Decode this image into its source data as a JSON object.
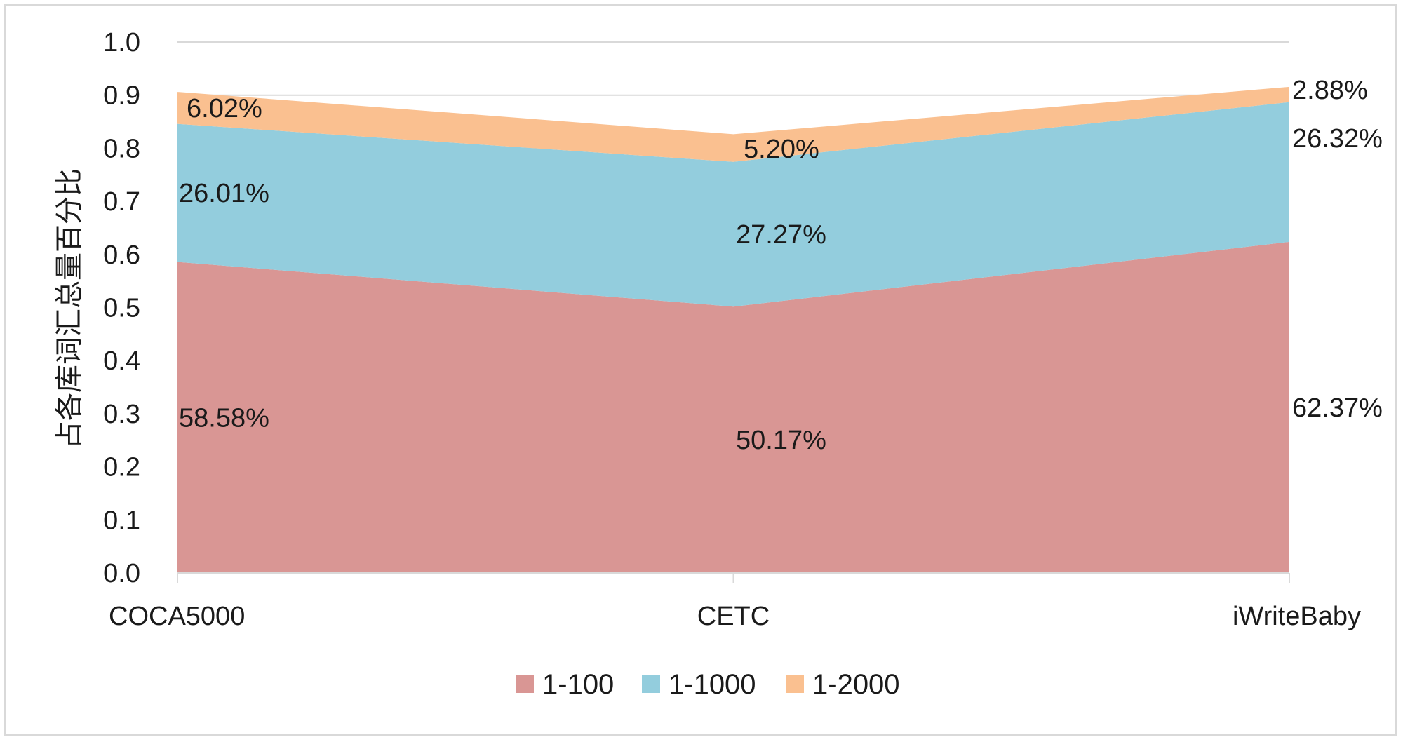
{
  "chart_data": {
    "type": "area",
    "stacked": true,
    "categories": [
      "COCA5000",
      "CETC",
      "iWriteBaby"
    ],
    "series": [
      {
        "name": "1-100",
        "values": [
          0.5858,
          0.5017,
          0.6237
        ],
        "labels": [
          "58.58%",
          "50.17%",
          "62.37%"
        ],
        "color": "#D99694"
      },
      {
        "name": "1-1000",
        "values": [
          0.2601,
          0.2727,
          0.2632
        ],
        "labels": [
          "26.01%",
          "27.27%",
          "26.32%"
        ],
        "color": "#93CDDD"
      },
      {
        "name": "1-2000",
        "values": [
          0.0602,
          0.052,
          0.0288
        ],
        "labels": [
          "6.02%",
          "5.20%",
          "2.88%"
        ],
        "color": "#FAC090"
      }
    ],
    "ylabel": "占各库词汇总量百分比",
    "xlabel": "",
    "ylim": [
      0,
      1.0
    ],
    "yticks": [
      "0.0",
      "0.1",
      "0.2",
      "0.3",
      "0.4",
      "0.5",
      "0.6",
      "0.7",
      "0.8",
      "0.9",
      "1.0"
    ],
    "grid": true,
    "legend": "bottom-center"
  }
}
